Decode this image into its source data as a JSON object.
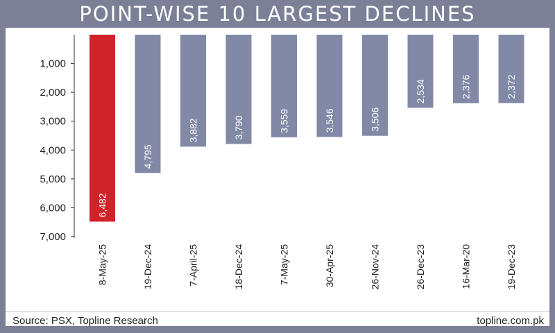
{
  "header": {
    "title": "POINT-WISE 10 LARGEST DECLINES"
  },
  "footer": {
    "source": "Source: PSX, Topline Research",
    "website": "topline.com.pk"
  },
  "colors": {
    "frame": "#7b8096",
    "bar": "#8289a7",
    "highlight": "#cf2229"
  },
  "chart_data": {
    "type": "bar",
    "title": "POINT-WISE 10 LARGEST DECLINES",
    "xlabel": "",
    "ylabel": "",
    "orientation": "downward",
    "categories": [
      "8-May-25",
      "19-Dec-24",
      "7-April-25",
      "18-Dec-24",
      "7-May-25",
      "30-Apr-25",
      "26-Nov-24",
      "26-Dec-23",
      "16-Mar-20",
      "19-Dec-23"
    ],
    "values": [
      6482,
      4795,
      3882,
      3790,
      3559,
      3546,
      3506,
      2534,
      2376,
      2372
    ],
    "data_labels": [
      "6,482",
      "4,795",
      "3,882",
      "3,790",
      "3,559",
      "3,546",
      "3,506",
      "2,534",
      "2,376",
      "2,372"
    ],
    "highlight_index": 0,
    "ylim": [
      0,
      7000
    ],
    "yticks": [
      1000,
      2000,
      3000,
      4000,
      5000,
      6000,
      7000
    ],
    "ytick_labels": [
      "1,000",
      "2,000",
      "3,000",
      "4,000",
      "5,000",
      "6,000",
      "7,000"
    ],
    "grid": false
  }
}
